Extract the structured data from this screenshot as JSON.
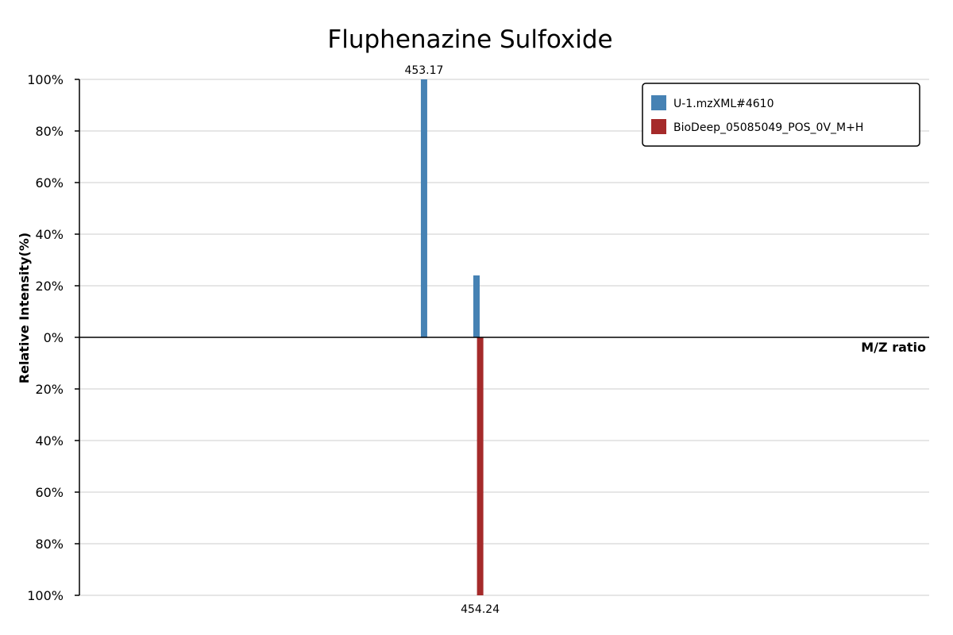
{
  "chart_data": {
    "type": "bar",
    "title": "Fluphenazine Sulfoxide",
    "xlabel": "M/Z ratio",
    "ylabel": "Relative Intensity(%)",
    "ylim": [
      -100,
      100
    ],
    "y_tick_values": [
      100,
      80,
      60,
      40,
      20,
      0,
      -20,
      -40,
      -60,
      -80,
      -100
    ],
    "y_tick_labels": [
      "100%",
      "80%",
      "60%",
      "40%",
      "20%",
      "0%",
      "20%",
      "40%",
      "60%",
      "80%",
      "100%"
    ],
    "grid": true,
    "legend_position": "top-right",
    "series": [
      {
        "name": "U-1.mzXML#4610",
        "color": "#4682b4",
        "direction": "up",
        "peaks": [
          {
            "mz": 453.17,
            "intensity": 100,
            "label": "453.17"
          },
          {
            "mz": 454.17,
            "intensity": 24
          }
        ]
      },
      {
        "name": "BioDeep_05085049_POS_0V_M+H",
        "color": "#a52a2a",
        "direction": "down",
        "peaks": [
          {
            "mz": 454.24,
            "intensity": 100,
            "label": "454.24"
          }
        ]
      }
    ]
  }
}
